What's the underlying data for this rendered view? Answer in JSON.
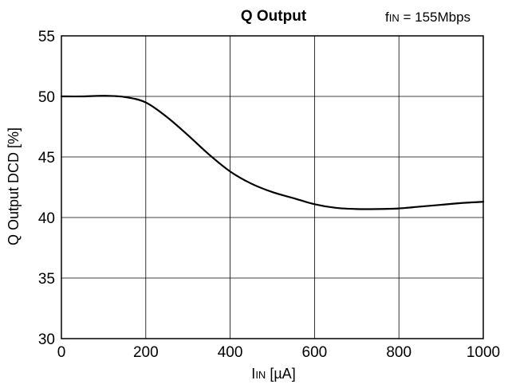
{
  "chart_data": {
    "type": "line",
    "title": "Q Output",
    "annotation": {
      "main": "f",
      "subscript": "IN",
      "rest": " = 155Mbps"
    },
    "xlabel": {
      "main": "I",
      "subscript": "IN",
      "rest": " [µA]"
    },
    "ylabel": "Q Output DCD [%]",
    "xlim": [
      0,
      1000
    ],
    "ylim": [
      30,
      55
    ],
    "xticks": [
      0,
      200,
      400,
      600,
      800,
      1000
    ],
    "yticks": [
      30,
      35,
      40,
      45,
      50,
      55
    ],
    "xtick_labels": [
      "0",
      "200",
      "400",
      "600",
      "800",
      "1000"
    ],
    "ytick_labels": [
      "30",
      "35",
      "40",
      "45",
      "50",
      "55"
    ],
    "grid": true,
    "line_color": "#000000",
    "series": [
      {
        "x": [
          0,
          50,
          100,
          150,
          200,
          250,
          300,
          350,
          400,
          450,
          500,
          550,
          600,
          650,
          700,
          750,
          800,
          850,
          900,
          950,
          1000
        ],
        "y": [
          50.0,
          50.0,
          50.05,
          49.95,
          49.5,
          48.3,
          46.8,
          45.2,
          43.8,
          42.8,
          42.1,
          41.6,
          41.1,
          40.8,
          40.7,
          40.7,
          40.75,
          40.9,
          41.05,
          41.2,
          41.3
        ]
      }
    ]
  }
}
